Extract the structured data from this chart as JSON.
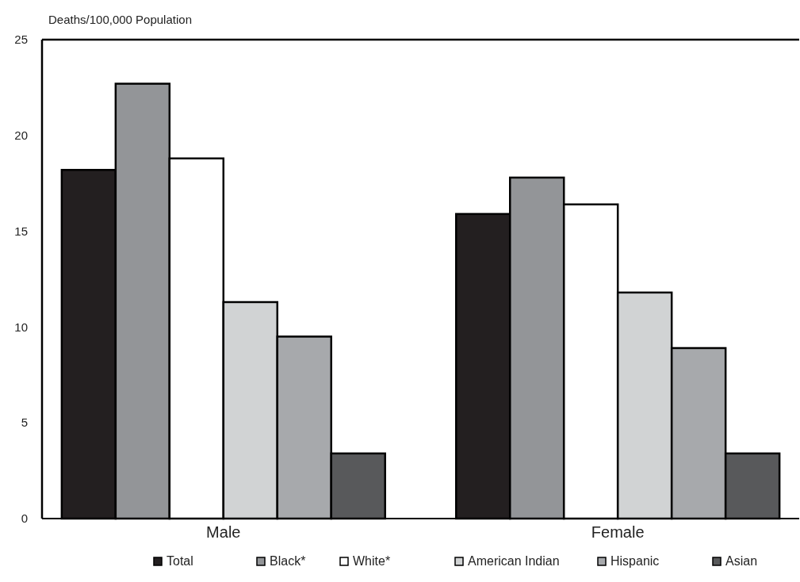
{
  "chart_data": {
    "type": "bar",
    "ylabel": "Deaths/100,000 Population",
    "categories": [
      "Male",
      "Female"
    ],
    "series": [
      {
        "name": "Total",
        "color": "#231f20",
        "values": [
          18.2,
          15.9
        ]
      },
      {
        "name": "Black*",
        "color": "#939598",
        "values": [
          22.7,
          17.8
        ]
      },
      {
        "name": "White*",
        "color": "#ffffff",
        "values": [
          18.8,
          16.4
        ]
      },
      {
        "name": "American Indian",
        "color": "#d1d3d4",
        "values": [
          11.3,
          11.8
        ]
      },
      {
        "name": "Hispanic",
        "color": "#a7a9ac",
        "values": [
          9.5,
          8.9
        ]
      },
      {
        "name": "Asian",
        "color": "#58595b",
        "values": [
          3.4,
          3.4
        ]
      }
    ],
    "ylim": [
      0,
      25
    ],
    "yticks": [
      0,
      5,
      10,
      15,
      20,
      25
    ],
    "grid": false,
    "legend": "bottom"
  }
}
